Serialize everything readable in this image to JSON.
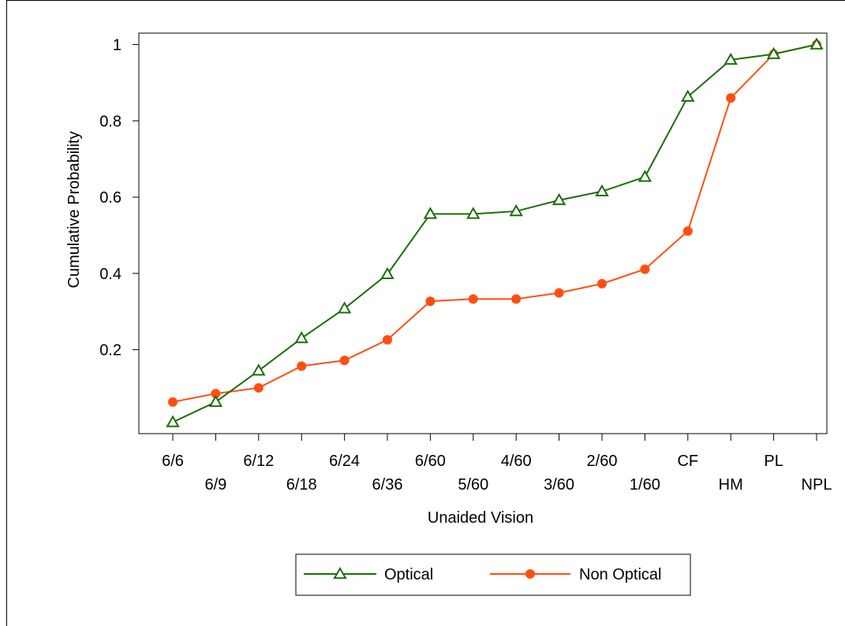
{
  "chart_data": {
    "type": "line",
    "title": "",
    "xlabel": "Unaided Vision",
    "ylabel": "Cumulative Probability",
    "categories": [
      "6/6",
      "6/9",
      "6/12",
      "6/18",
      "6/24",
      "6/36",
      "6/60",
      "5/60",
      "4/60",
      "3/60",
      "2/60",
      "1/60",
      "CF",
      "HM",
      "PL",
      "NPL"
    ],
    "yticks": [
      "0.2",
      "0.4",
      "0.6",
      "0.8",
      "1"
    ],
    "ylim": [
      -0.02,
      1.03
    ],
    "grid": false,
    "legend_position": "bottom",
    "series": [
      {
        "name": "Optical",
        "color": "#1a6e0a",
        "marker": "triangle-open",
        "values": [
          0.01,
          0.063,
          0.145,
          0.23,
          0.308,
          0.398,
          0.556,
          0.556,
          0.563,
          0.592,
          0.615,
          0.653,
          0.863,
          0.96,
          0.975,
          1.0
        ]
      },
      {
        "name": "Non Optical",
        "color": "#ff4f10",
        "marker": "circle-filled",
        "values": [
          0.063,
          0.085,
          0.1,
          0.157,
          0.172,
          0.226,
          0.327,
          0.333,
          0.333,
          0.349,
          0.373,
          0.411,
          0.511,
          0.86,
          0.975,
          1.0
        ]
      }
    ]
  }
}
